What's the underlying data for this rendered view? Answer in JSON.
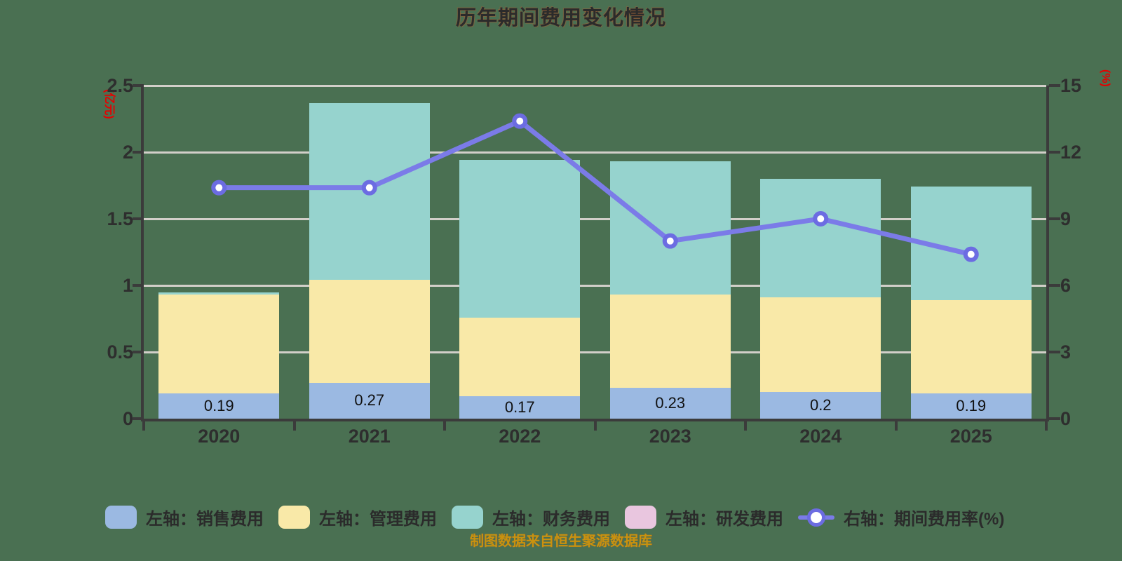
{
  "title": "历年期间费用变化情况",
  "subtitle": "制图数据来自恒生聚源数据库",
  "left_axis_unit": "(亿元)",
  "right_axis_unit": "(%)",
  "colors": {
    "background": "#4a7052",
    "title": "#2b2b2b",
    "subtitle": "#c9920f",
    "unit_label": "#e60000",
    "axis": "#3b3b3b",
    "grid": "#d2cfc9",
    "tick_label": "#2e2e2e",
    "bar_value_label": "#101010",
    "bar_sales": "#9bb9e2",
    "bar_admin": "#f9e9a8",
    "bar_finance": "#96d3ce",
    "bar_rd": "#e9c6df",
    "line": "#7b7be8",
    "line_marker_ring": "#6c6ce2",
    "line_marker_fill": "#ffffff"
  },
  "legend": {
    "items": [
      {
        "key": "sales",
        "label": "左轴：销售费用",
        "swatch": "rect",
        "color": "#9bb9e2"
      },
      {
        "key": "admin",
        "label": "左轴：管理费用",
        "swatch": "rect",
        "color": "#f9e9a8"
      },
      {
        "key": "finance",
        "label": "左轴：财务费用",
        "swatch": "rect",
        "color": "#96d3ce"
      },
      {
        "key": "rd",
        "label": "左轴：研发费用",
        "swatch": "rect",
        "color": "#e9c6df"
      },
      {
        "key": "rate",
        "label": "右轴：期间费用率(%)",
        "swatch": "line-marker",
        "color": "#7b7be8"
      }
    ]
  },
  "chart_data": {
    "type": "bar",
    "subtype": "stacked-bar-with-line",
    "title": "历年期间费用变化情况",
    "categories": [
      "2020",
      "2021",
      "2022",
      "2023",
      "2024",
      "2025"
    ],
    "series": [
      {
        "key": "sales",
        "name": "左轴：销售费用",
        "type": "bar",
        "axis": "left",
        "color": "#9bb9e2",
        "values": [
          0.19,
          0.27,
          0.17,
          0.23,
          0.2,
          0.19
        ],
        "labels": [
          "0.19",
          "0.27",
          "0.17",
          "0.23",
          "0.2",
          "0.19"
        ]
      },
      {
        "key": "admin",
        "name": "左轴：管理费用",
        "type": "bar",
        "axis": "left",
        "color": "#f9e9a8",
        "values": [
          0.74,
          0.77,
          0.59,
          0.7,
          0.71,
          0.7
        ]
      },
      {
        "key": "finance",
        "name": "左轴：财务费用",
        "type": "bar",
        "axis": "left",
        "color": "#96d3ce",
        "values": [
          0.02,
          1.33,
          1.18,
          1.0,
          0.89,
          0.85
        ]
      },
      {
        "key": "rd",
        "name": "左轴：研发费用",
        "type": "bar",
        "axis": "left",
        "color": "#e9c6df",
        "values": [
          0,
          0,
          0,
          0,
          0,
          0
        ]
      },
      {
        "key": "rate",
        "name": "右轴：期间费用率(%)",
        "type": "line",
        "axis": "right",
        "color": "#7b7be8",
        "values": [
          10.4,
          10.4,
          13.4,
          8.0,
          9.0,
          7.4
        ]
      }
    ],
    "left_axis": {
      "label": "(亿元)",
      "range": [
        0,
        2.5
      ],
      "ticks": [
        "0",
        "0.5",
        "1",
        "1.5",
        "2",
        "2.5"
      ],
      "tick_values": [
        0,
        0.5,
        1,
        1.5,
        2,
        2.5
      ]
    },
    "right_axis": {
      "label": "(%)",
      "range": [
        0,
        15
      ],
      "ticks": [
        "0",
        "3",
        "6",
        "9",
        "12",
        "15"
      ],
      "tick_values": [
        0,
        3,
        6,
        9,
        12,
        15
      ]
    },
    "grid": true,
    "stacked": true,
    "legend_position": "bottom"
  }
}
